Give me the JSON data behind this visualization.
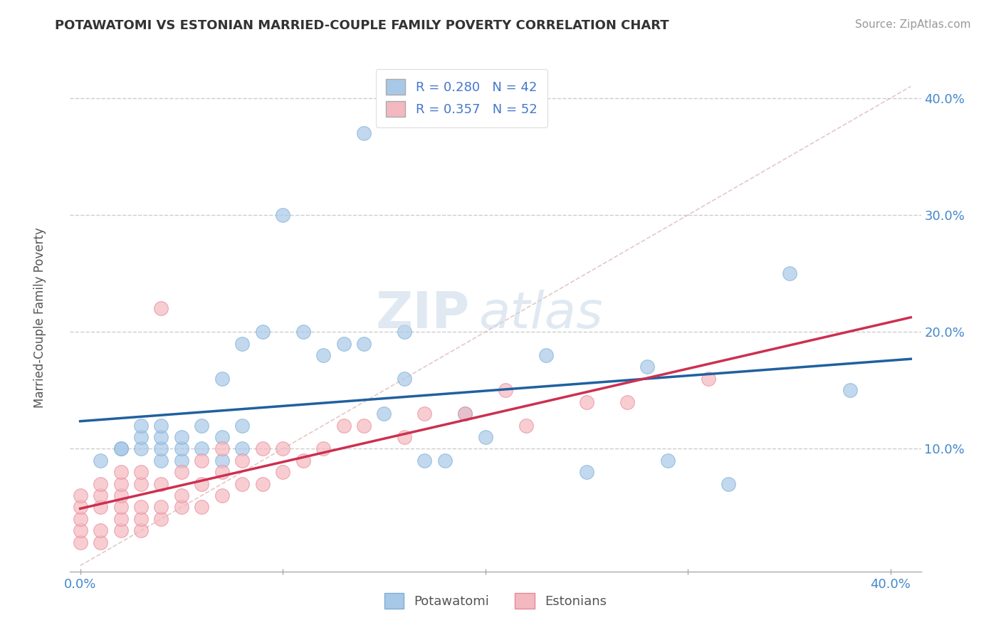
{
  "title": "POTAWATOMI VS ESTONIAN MARRIED-COUPLE FAMILY POVERTY CORRELATION CHART",
  "source": "Source: ZipAtlas.com",
  "ylabel_label": "Married-Couple Family Poverty",
  "x_tick_positions": [
    0.0,
    0.1,
    0.2,
    0.3,
    0.4
  ],
  "x_tick_labels_left": "0.0%",
  "x_tick_labels_right": "40.0%",
  "y_ticks": [
    0.1,
    0.2,
    0.3,
    0.4
  ],
  "y_tick_labels": [
    "10.0%",
    "20.0%",
    "30.0%",
    "40.0%"
  ],
  "xlim": [
    -0.005,
    0.415
  ],
  "ylim": [
    -0.005,
    0.435
  ],
  "blue_color": "#a8c8e8",
  "blue_edge_color": "#7bafd4",
  "pink_color": "#f4b8c0",
  "pink_edge_color": "#e88898",
  "trendline_blue": "#2060a0",
  "trendline_pink": "#cc3050",
  "diagonal_color": "#cccccc",
  "diagonal_style": "--",
  "R_blue": 0.28,
  "N_blue": 42,
  "R_pink": 0.357,
  "N_pink": 52,
  "blue_scatter_x": [
    0.01,
    0.02,
    0.02,
    0.03,
    0.03,
    0.03,
    0.04,
    0.04,
    0.04,
    0.04,
    0.05,
    0.05,
    0.05,
    0.06,
    0.06,
    0.07,
    0.07,
    0.07,
    0.08,
    0.08,
    0.08,
    0.09,
    0.1,
    0.11,
    0.12,
    0.13,
    0.14,
    0.14,
    0.15,
    0.16,
    0.16,
    0.17,
    0.18,
    0.19,
    0.2,
    0.23,
    0.25,
    0.28,
    0.29,
    0.32,
    0.35,
    0.38
  ],
  "blue_scatter_y": [
    0.09,
    0.1,
    0.1,
    0.1,
    0.11,
    0.12,
    0.09,
    0.1,
    0.11,
    0.12,
    0.09,
    0.1,
    0.11,
    0.1,
    0.12,
    0.09,
    0.11,
    0.16,
    0.1,
    0.12,
    0.19,
    0.2,
    0.3,
    0.2,
    0.18,
    0.19,
    0.19,
    0.37,
    0.13,
    0.16,
    0.2,
    0.09,
    0.09,
    0.13,
    0.11,
    0.18,
    0.08,
    0.17,
    0.09,
    0.07,
    0.25,
    0.15
  ],
  "pink_scatter_x": [
    0.0,
    0.0,
    0.0,
    0.0,
    0.0,
    0.01,
    0.01,
    0.01,
    0.01,
    0.01,
    0.02,
    0.02,
    0.02,
    0.02,
    0.02,
    0.02,
    0.03,
    0.03,
    0.03,
    0.03,
    0.03,
    0.04,
    0.04,
    0.04,
    0.04,
    0.05,
    0.05,
    0.05,
    0.06,
    0.06,
    0.06,
    0.07,
    0.07,
    0.07,
    0.08,
    0.08,
    0.09,
    0.09,
    0.1,
    0.1,
    0.11,
    0.12,
    0.13,
    0.14,
    0.16,
    0.17,
    0.19,
    0.21,
    0.22,
    0.25,
    0.27,
    0.31
  ],
  "pink_scatter_y": [
    0.02,
    0.03,
    0.04,
    0.05,
    0.06,
    0.02,
    0.03,
    0.05,
    0.06,
    0.07,
    0.03,
    0.04,
    0.05,
    0.06,
    0.07,
    0.08,
    0.03,
    0.04,
    0.05,
    0.07,
    0.08,
    0.04,
    0.05,
    0.07,
    0.22,
    0.05,
    0.06,
    0.08,
    0.05,
    0.07,
    0.09,
    0.06,
    0.08,
    0.1,
    0.07,
    0.09,
    0.07,
    0.1,
    0.08,
    0.1,
    0.09,
    0.1,
    0.12,
    0.12,
    0.11,
    0.13,
    0.13,
    0.15,
    0.12,
    0.14,
    0.14,
    0.16
  ],
  "watermark_zip": "ZIP",
  "watermark_atlas": "atlas",
  "background_color": "#ffffff",
  "grid_color": "#cccccc",
  "tick_color": "#4488cc",
  "legend_text_color": "#4477cc"
}
